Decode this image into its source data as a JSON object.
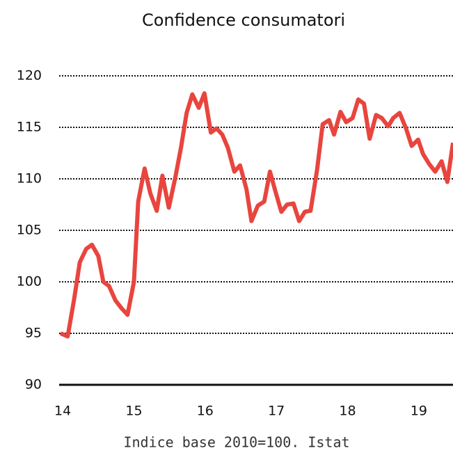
{
  "chart_data": {
    "type": "line",
    "title": "Confidence consumatori",
    "source": "Indice base 2010=100. Istat",
    "x": [
      13.97,
      14.07,
      14.16,
      14.24,
      14.33,
      14.41,
      14.5,
      14.57,
      14.65,
      14.74,
      14.83,
      14.91,
      15.0,
      15.06,
      15.15,
      15.23,
      15.32,
      15.4,
      15.49,
      15.58,
      15.66,
      15.74,
      15.82,
      15.91,
      15.99,
      16.08,
      16.16,
      16.24,
      16.32,
      16.41,
      16.49,
      16.58,
      16.65,
      16.74,
      16.83,
      16.91,
      16.99,
      17.07,
      17.15,
      17.24,
      17.32,
      17.4,
      17.48,
      17.57,
      17.65,
      17.74,
      17.81,
      17.9,
      17.98,
      18.07,
      18.15,
      18.23,
      18.31,
      18.4,
      18.48,
      18.57,
      18.64,
      18.73,
      18.82,
      18.9,
      18.99,
      19.06,
      19.15,
      19.23,
      19.32,
      19.4,
      19.48
    ],
    "series": [
      {
        "color": "#e8453e",
        "values": [
          95.0,
          94.7,
          98.3,
          101.9,
          103.2,
          103.6,
          102.5,
          100,
          99.6,
          98.2,
          97.4,
          96.8,
          100,
          107.8,
          111,
          108.6,
          106.9,
          110.3,
          107.2,
          110.1,
          113,
          116.4,
          118.2,
          116.9,
          118.3,
          114.5,
          114.9,
          114.3,
          113,
          110.7,
          111.3,
          109,
          105.9,
          107.4,
          107.8,
          110.7,
          108.7,
          106.8,
          107.5,
          107.6,
          105.9,
          106.8,
          106.9,
          110.8,
          115.3,
          115.7,
          114.3,
          116.5,
          115.5,
          115.9,
          117.7,
          117.3,
          113.9,
          116.2,
          115.9,
          115.1,
          115.9,
          116.4,
          114.9,
          113.2,
          113.8,
          112.4,
          111.4,
          110.7,
          111.7,
          109.7,
          113.5
        ]
      }
    ],
    "xlim": [
      13.95,
      19.48
    ],
    "xticks": [
      14,
      15,
      16,
      17,
      18,
      19
    ],
    "xtick_labels": [
      "14",
      "15",
      "16",
      "17",
      "18",
      "19"
    ],
    "ylim": [
      90,
      120
    ],
    "yticks": [
      90,
      95,
      100,
      105,
      110,
      115,
      120
    ],
    "grid": true
  }
}
